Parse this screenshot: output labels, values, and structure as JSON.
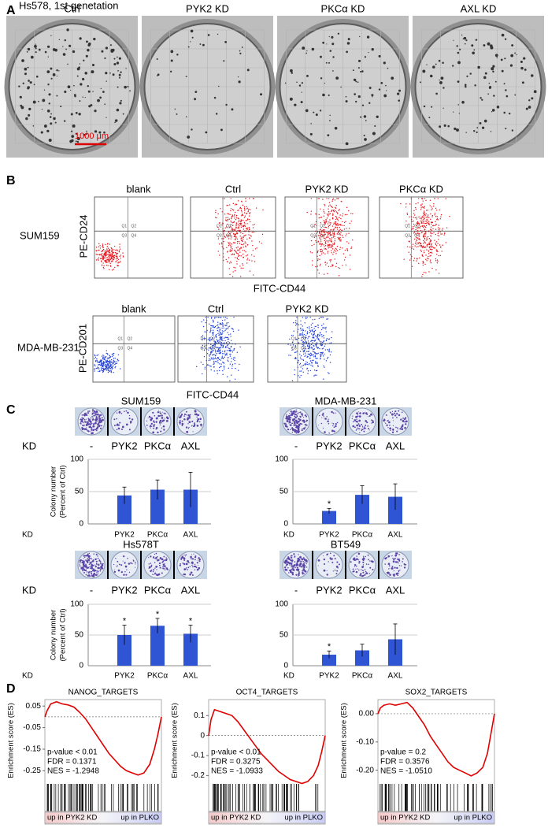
{
  "panel_labels": [
    "A",
    "B",
    "C",
    "D"
  ],
  "panel_a": {
    "title": "Hs578, 1st genetation",
    "labels": [
      "Ctrl",
      "PYK2 KD",
      "PKCα KD",
      "AXL KD"
    ],
    "scale_bar": "1000 μm"
  },
  "panel_b": {
    "quadrants": [
      "Q1",
      "Q2",
      "Q3",
      "Q4"
    ],
    "rows": [
      {
        "name": "SUM159",
        "y_label": "PE-CD24",
        "x_label": "FITC-CD44",
        "color": "#e8141c",
        "plots": [
          "blank",
          "Ctrl",
          "PYK2 KD",
          "PKCα KD"
        ]
      },
      {
        "name": "MDA-MB-231",
        "y_label": "PE-CD201",
        "x_label": "FITC-CD44",
        "color": "#1f3fd8",
        "plots": [
          "blank",
          "Ctrl",
          "PYK2 KD"
        ]
      }
    ]
  },
  "chart_data": [
    {
      "type": "bar",
      "title": "SUM159",
      "plate_row": {
        "label": "KD",
        "lanes": [
          "-",
          "PYK2",
          "PKCα",
          "AXL"
        ]
      },
      "y_label": [
        "Colony number",
        "(Percent of Ctrl)"
      ],
      "x_label": "KD",
      "categories": [
        "PYK2",
        "PKCα",
        "AXL"
      ],
      "values": [
        44,
        53,
        53
      ],
      "errors": [
        13,
        15,
        27
      ],
      "color": "#2f55d4",
      "ylim": [
        0,
        100
      ],
      "yticks": [
        0,
        50,
        100
      ]
    },
    {
      "type": "bar",
      "title": "MDA-MB-231",
      "plate_row": {
        "lanes": [
          "-",
          "PYK2",
          "PKCα",
          "AXL"
        ]
      },
      "x_label": "KD",
      "categories": [
        "PYK2",
        "PKCα",
        "AXL"
      ],
      "values": [
        20,
        45,
        42
      ],
      "errors": [
        4,
        14,
        20
      ],
      "color": "#2f55d4",
      "ylim": [
        0,
        100
      ],
      "yticks": [
        0,
        50,
        100
      ],
      "annotations": [
        {
          "index": 0,
          "text": "*"
        }
      ]
    },
    {
      "type": "bar",
      "title": "Hs578T",
      "plate_row": {
        "label": "KD",
        "lanes": [
          "-",
          "PYK2",
          "PKCα",
          "AXL"
        ]
      },
      "y_label": [
        "Colony number",
        "(Percent of Ctrl)"
      ],
      "x_label": "KD",
      "categories": [
        "PYK2",
        "PKCα",
        "AXL"
      ],
      "values": [
        50,
        65,
        52
      ],
      "errors": [
        16,
        12,
        14
      ],
      "color": "#2f55d4",
      "ylim": [
        0,
        100
      ],
      "yticks": [
        0,
        50,
        100
      ],
      "annotations": [
        {
          "index": 0,
          "text": "*"
        },
        {
          "index": 1,
          "text": "*"
        },
        {
          "index": 2,
          "text": "*"
        }
      ]
    },
    {
      "type": "bar",
      "title": "BT549",
      "plate_row": {
        "lanes": [
          "-",
          "PYK2",
          "PKCα",
          "AXL"
        ]
      },
      "x_label": "KD",
      "categories": [
        "PYK2",
        "PKCα",
        "AXL"
      ],
      "values": [
        18,
        25,
        43
      ],
      "errors": [
        6,
        10,
        25
      ],
      "color": "#2f55d4",
      "ylim": [
        0,
        100
      ],
      "yticks": [
        0,
        50,
        100
      ],
      "annotations": [
        {
          "index": 0,
          "text": "*"
        }
      ]
    },
    {
      "type": "line",
      "title": "NANOG_TARGETS",
      "ylabel": "Enrichment score (ES)",
      "color": "#e00000",
      "x": [
        0,
        2,
        5,
        10,
        15,
        20,
        25,
        30,
        35,
        40,
        45,
        50,
        55,
        60,
        65,
        70,
        75,
        80,
        85,
        90,
        94,
        97,
        100
      ],
      "values": [
        0,
        0.03,
        0.06,
        0.07,
        0.06,
        0.055,
        0.045,
        0.02,
        -0.01,
        -0.05,
        -0.09,
        -0.13,
        -0.17,
        -0.2,
        -0.23,
        -0.25,
        -0.26,
        -0.27,
        -0.26,
        -0.22,
        -0.15,
        -0.08,
        0
      ],
      "xlim": [
        0,
        100
      ],
      "ylim": [
        -0.3,
        0.08
      ],
      "yticks": [
        0.05,
        -0.05,
        -0.15,
        -0.25
      ],
      "zero_line": 0,
      "stats": [
        "p-value < 0.01",
        "FDR = 0.1371",
        "NES = -1.2948"
      ],
      "phenotype_labels": [
        "up in PYK2 KD",
        "up in PLKO"
      ]
    },
    {
      "type": "line",
      "title": "OCT4_TARGETS",
      "ylabel": "Enrichment score (ES)",
      "color": "#e00000",
      "x": [
        0,
        2,
        5,
        10,
        15,
        20,
        25,
        30,
        35,
        40,
        45,
        50,
        55,
        60,
        65,
        70,
        75,
        80,
        85,
        90,
        94,
        97,
        100
      ],
      "values": [
        0,
        0.08,
        0.13,
        0.12,
        0.11,
        0.1,
        0.07,
        0.03,
        -0.01,
        -0.05,
        -0.09,
        -0.12,
        -0.15,
        -0.18,
        -0.2,
        -0.22,
        -0.23,
        -0.24,
        -0.23,
        -0.2,
        -0.15,
        -0.08,
        0
      ],
      "xlim": [
        0,
        100
      ],
      "ylim": [
        -0.23,
        0.18
      ],
      "yticks": [
        0.1,
        0,
        -0.1,
        -0.2
      ],
      "zero_line": 0,
      "stats": [
        "p-value < 0.01",
        "FDR = 0.3275",
        "NES = -1.0933"
      ],
      "phenotype_labels": [
        "up in PYK2 KD",
        "up in PLKO"
      ]
    },
    {
      "type": "line",
      "title": "SOX2_TARGETS",
      "ylabel": "Enrichment score (ES)",
      "color": "#e00000",
      "x": [
        0,
        2,
        5,
        10,
        15,
        20,
        25,
        30,
        35,
        40,
        45,
        50,
        55,
        60,
        65,
        70,
        75,
        80,
        85,
        90,
        94,
        97,
        100
      ],
      "values": [
        0,
        0.02,
        0.03,
        0.035,
        0.03,
        0.035,
        0.04,
        0.02,
        -0.01,
        -0.04,
        -0.08,
        -0.11,
        -0.14,
        -0.17,
        -0.19,
        -0.2,
        -0.21,
        -0.22,
        -0.21,
        -0.19,
        -0.14,
        -0.07,
        0
      ],
      "xlim": [
        0,
        100
      ],
      "ylim": [
        -0.24,
        0.05
      ],
      "yticks": [
        {
          "value": 0,
          "label": "0.00"
        },
        {
          "value": -0.1,
          "label": "-0.10"
        },
        {
          "value": -0.2,
          "label": "-0.20"
        }
      ],
      "zero_line": 0,
      "stats": [
        "p-value = 0.2",
        "FDR = 0.3576",
        "NES = -1.0510"
      ],
      "phenotype_labels": [
        "up in PYK2 KD",
        "up in PLKO"
      ]
    }
  ]
}
